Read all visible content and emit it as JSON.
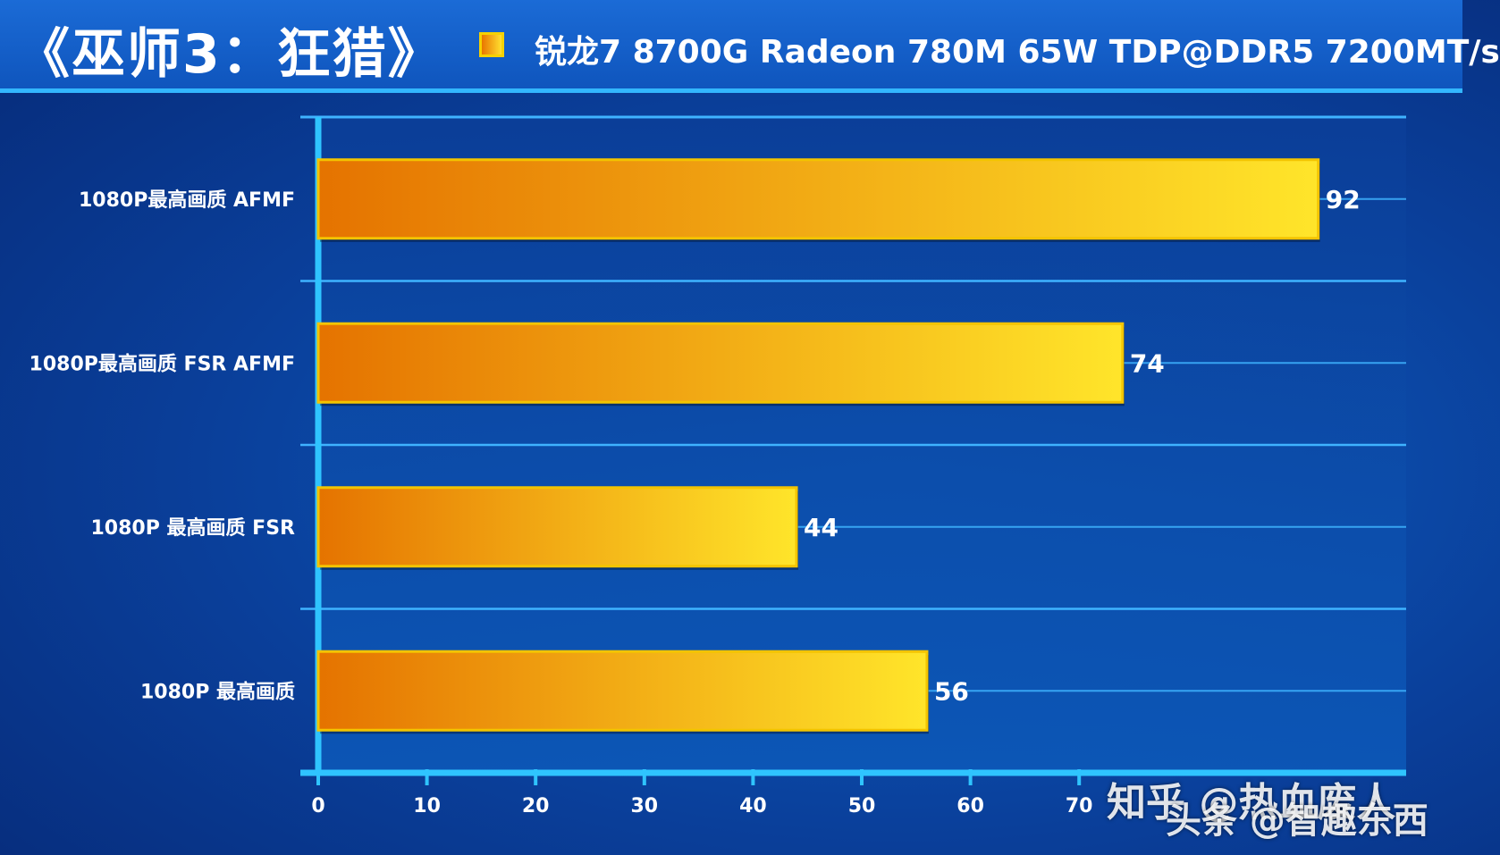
{
  "header": {
    "title": "《巫师3：狂猎》",
    "legend_label": "锐龙7 8700G Radeon 780M 65W TDP@DDR5 7200MT/s"
  },
  "watermarks": {
    "zhihu": "知乎 @热血废人",
    "toutiao": "头条 @智趣东西"
  },
  "colors": {
    "bar_start": "#e57300",
    "bar_end": "#ffe52a",
    "bar_border": "#f3c400",
    "axis": "#2fc4ff",
    "grid": "#3fb3ff"
  },
  "chart_data": {
    "type": "bar",
    "orientation": "horizontal",
    "categories": [
      "1080P最高画质 AFMF",
      "1080P最高画质 FSR AFMF",
      "1080P 最高画质 FSR",
      "1080P 最高画质"
    ],
    "series": [
      {
        "name": "锐龙7 8700G Radeon 780M 65W TDP@DDR5 7200MT/s",
        "values": [
          92,
          74,
          44,
          56
        ]
      }
    ],
    "xlim": [
      0,
      100
    ],
    "xticks": [
      0,
      10,
      20,
      30,
      40,
      50,
      60,
      70
    ],
    "grid": true,
    "legend_position": "top"
  }
}
